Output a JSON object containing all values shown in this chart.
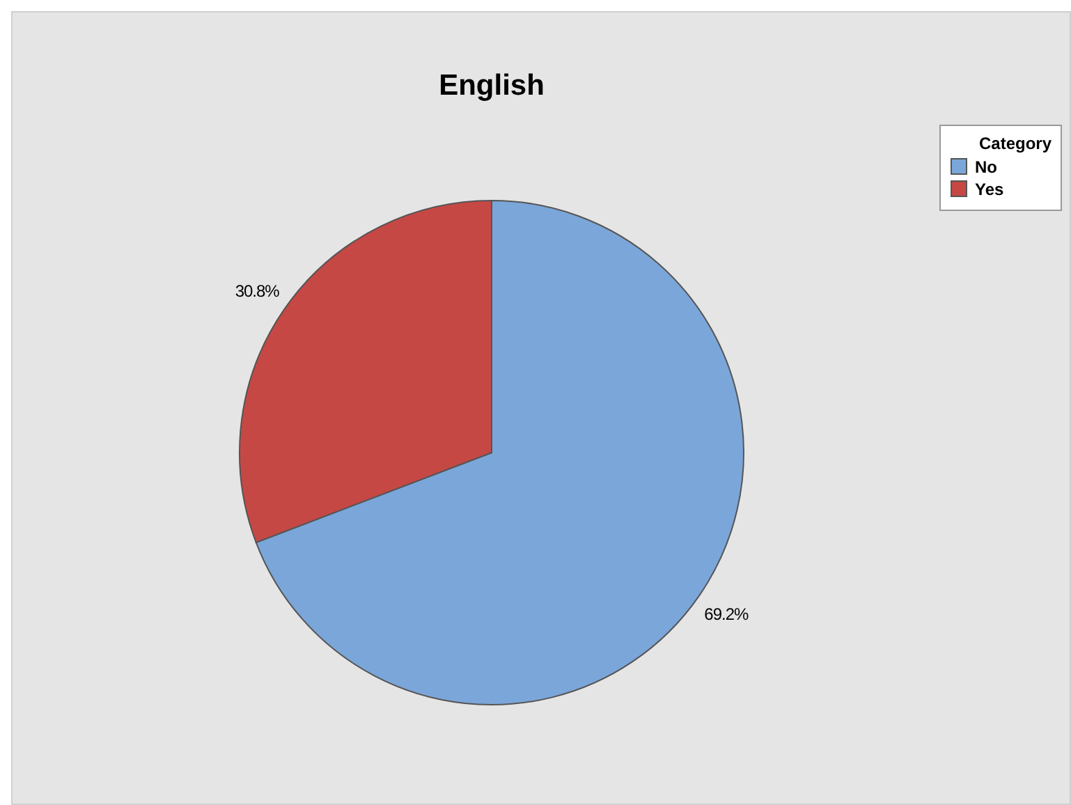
{
  "chart_data": {
    "type": "pie",
    "title": "English",
    "legend_title": "Category",
    "categories": [
      "No",
      "Yes"
    ],
    "values": [
      69.2,
      30.8
    ],
    "colors": [
      "#7ba6d9",
      "#c64845"
    ],
    "value_labels": [
      "69.2%",
      "30.8%"
    ],
    "legend": "top right"
  }
}
